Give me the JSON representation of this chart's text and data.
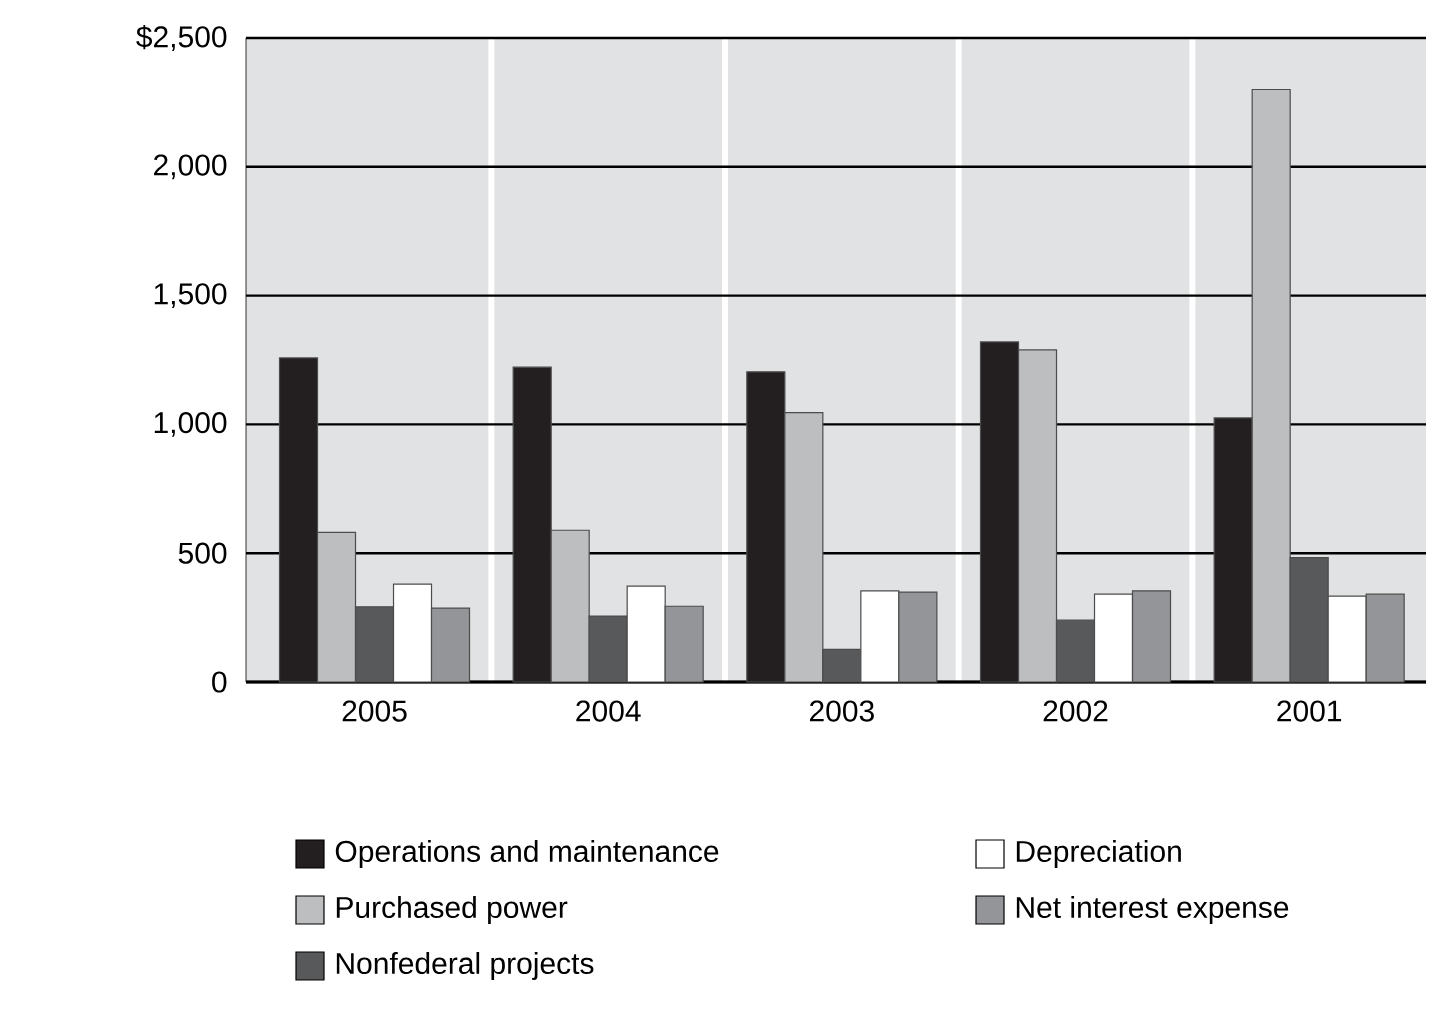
{
  "chart_data": {
    "type": "bar",
    "categories": [
      "2005",
      "2004",
      "2003",
      "2002",
      "2001"
    ],
    "series": [
      {
        "name": "Operations and maintenance",
        "color": "#231f20",
        "values": [
          1258,
          1222,
          1204,
          1320,
          1025
        ]
      },
      {
        "name": "Purchased power",
        "color": "#bcbec0",
        "values": [
          581,
          589,
          1046,
          1289,
          2300
        ]
      },
      {
        "name": "Nonfederal projects",
        "color": "#58595b",
        "values": [
          292,
          256,
          127,
          240,
          483
        ]
      },
      {
        "name": "Depreciation",
        "color": "#ffffff",
        "values": [
          380,
          372,
          354,
          341,
          333
        ]
      },
      {
        "name": "Net interest expense",
        "color": "#939598",
        "values": [
          287,
          294,
          349,
          354,
          341
        ]
      }
    ],
    "ylim": [
      0,
      2500
    ],
    "yticks": [
      0,
      500,
      {
        "value": 1000,
        "label": "1,000"
      },
      {
        "value": 1500,
        "label": "1,500"
      },
      {
        "value": 2000,
        "label": "2,000"
      },
      {
        "value": 2500,
        "label": "$2,500"
      }
    ],
    "grid": "y",
    "legend": "bottom"
  }
}
